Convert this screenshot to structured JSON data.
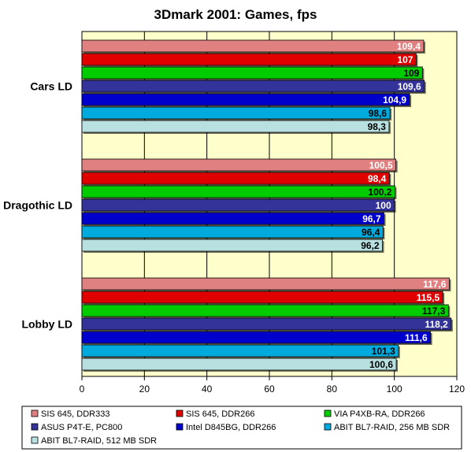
{
  "chart_data": {
    "type": "bar",
    "orientation": "horizontal",
    "title": "3Dmark 2001: Games, fps",
    "xlabel": "",
    "ylabel": "",
    "xlim": [
      0,
      120
    ],
    "x_ticks": [
      0,
      20,
      40,
      60,
      80,
      100,
      120
    ],
    "grid": true,
    "legend_position": "bottom",
    "plot_background": "#FFFFCC",
    "categories": [
      "Cars LD",
      "Dragothic LD",
      "Lobby LD"
    ],
    "series": [
      {
        "name": "SIS 645, DDR333",
        "color": "#E08080",
        "values": [
          109.4,
          100.5,
          117.6
        ],
        "labels": [
          "109,4",
          "100,5",
          "117,6"
        ],
        "label_color": "#ffffff"
      },
      {
        "name": "SIS 645, DDR266",
        "color": "#E00000",
        "values": [
          107,
          98.4,
          115.5
        ],
        "labels": [
          "107",
          "98,4",
          "115,5"
        ],
        "label_color": "#ffffff"
      },
      {
        "name": "VIA P4XB-RA, DDR266",
        "color": "#00CC00",
        "values": [
          109,
          100.2,
          117.3
        ],
        "labels": [
          "109",
          "100,2",
          "117,3"
        ],
        "label_color": "#000000"
      },
      {
        "name": "ASUS P4T-E, PC800",
        "color": "#333399",
        "values": [
          109.6,
          100,
          118.2
        ],
        "labels": [
          "109,6",
          "100",
          "118,2"
        ],
        "label_color": "#ffffff"
      },
      {
        "name": "Intel D845BG, DDR266",
        "color": "#0000CC",
        "values": [
          104.9,
          96.7,
          111.6
        ],
        "labels": [
          "104,9",
          "96,7",
          "111,6"
        ],
        "label_color": "#ffffff"
      },
      {
        "name": "ABIT BL7-RAID, 256 MB SDR",
        "color": "#00AADD",
        "values": [
          98.6,
          96.4,
          101.3
        ],
        "labels": [
          "98,6",
          "96,4",
          "101,3"
        ],
        "label_color": "#000000"
      },
      {
        "name": "ABIT BL7-RAID, 512 MB SDR",
        "color": "#B8E0E0",
        "values": [
          98.3,
          96.2,
          100.6
        ],
        "labels": [
          "98,3",
          "96,2",
          "100,6"
        ],
        "label_color": "#000000"
      }
    ]
  }
}
